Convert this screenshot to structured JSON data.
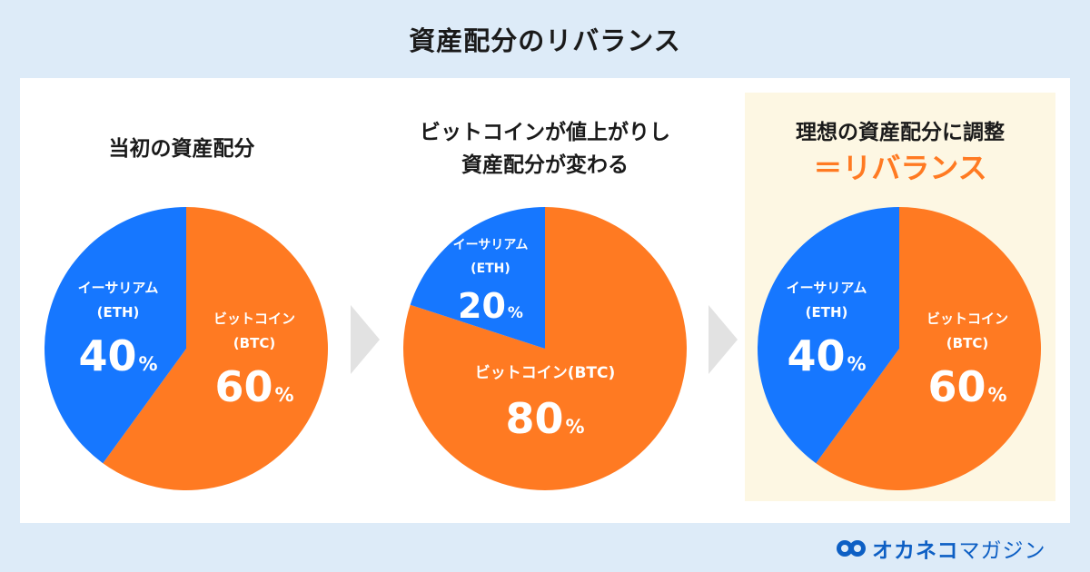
{
  "title": "資産配分のリバランス",
  "panels": [
    {
      "heading_lines": [
        "当初の資産配分"
      ],
      "accent": "",
      "slices": [
        {
          "name_lines": [
            "イーサリアム",
            "(ETH)"
          ],
          "pct": "40",
          "value": 40,
          "color": "#1677ff"
        },
        {
          "name_lines": [
            "ビットコイン",
            "(BTC)"
          ],
          "pct": "60",
          "value": 60,
          "color": "#ff7a22"
        }
      ]
    },
    {
      "heading_lines": [
        "ビットコインが値上がりし",
        "資産配分が変わる"
      ],
      "accent": "",
      "slices": [
        {
          "name_lines": [
            "イーサリアム",
            "(ETH)"
          ],
          "pct": "20",
          "value": 20,
          "color": "#1677ff"
        },
        {
          "name_lines": [
            "ビットコイン(BTC)"
          ],
          "pct": "80",
          "value": 80,
          "color": "#ff7a22"
        }
      ]
    },
    {
      "heading_lines": [
        "理想の資産配分に調整"
      ],
      "accent": "＝リバランス",
      "slices": [
        {
          "name_lines": [
            "イーサリアム",
            "(ETH)"
          ],
          "pct": "40",
          "value": 40,
          "color": "#1677ff"
        },
        {
          "name_lines": [
            "ビットコイン",
            "(BTC)"
          ],
          "pct": "60",
          "value": 60,
          "color": "#ff7a22"
        }
      ]
    }
  ],
  "percent_sign": "%",
  "brand": {
    "name": "オカネコ",
    "suffix": "マガジン",
    "icon": "okaneko-logo-icon"
  },
  "colors": {
    "eth": "#1677ff",
    "btc": "#ff7a22",
    "arrow": "#e2e2e2",
    "background": "#ddebf8",
    "highlight": "#fdf7e3"
  }
}
